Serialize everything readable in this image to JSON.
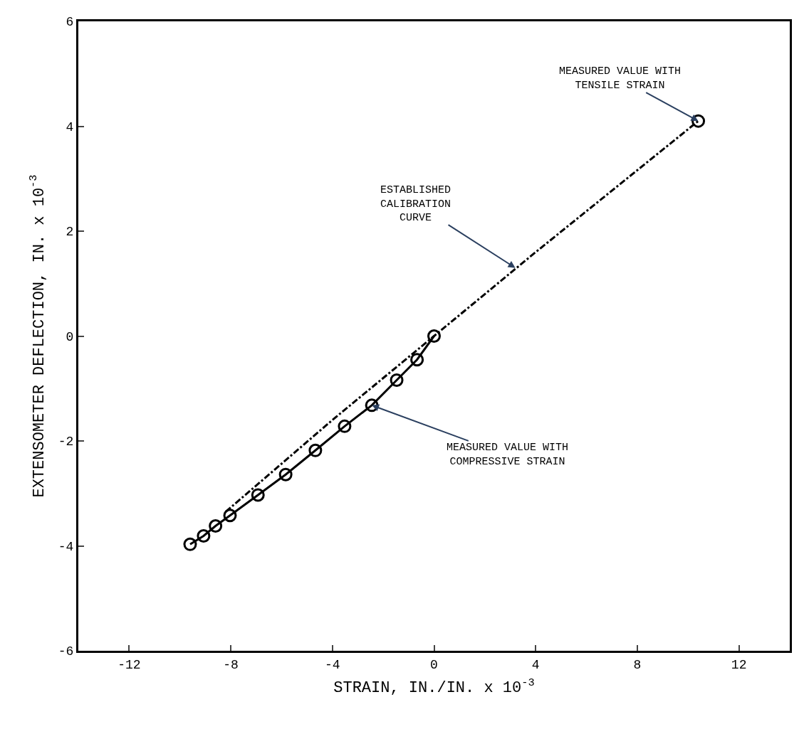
{
  "chart_data": {
    "type": "line",
    "xlabel": "STRAIN, IN./IN. x 10$^{-3}$",
    "ylabel": "EXTENSOMETER DEFLECTION, IN. x 10$^{-3}$",
    "xlim": [
      -14,
      14
    ],
    "ylim": [
      -6,
      6
    ],
    "xticks": [
      -12,
      -8,
      -4,
      0,
      4,
      8,
      12
    ],
    "yticks": [
      -6,
      -4,
      -2,
      0,
      2,
      4,
      6
    ],
    "series": [
      {
        "color": "#000000",
        "line_style": "dashed",
        "marker": "none",
        "x": [
          -8.2,
          -4,
          0,
          4,
          10.4
        ],
        "values": [
          -3.35,
          -1.6,
          0,
          1.6,
          4.1
        ]
      },
      {
        "color": "#000000",
        "line_style": "solid",
        "marker": "circle",
        "x": [
          0,
          -0.67,
          -1.47,
          -2.45,
          -3.52,
          -4.67,
          -5.84,
          -6.93,
          -8.03,
          -8.6,
          -9.07,
          -9.6
        ],
        "values": [
          0,
          -0.45,
          -0.84,
          -1.32,
          -1.72,
          -2.18,
          -2.64,
          -3.03,
          -3.42,
          -3.62,
          -3.81,
          -3.97
        ]
      },
      {
        "type": "scatter",
        "color": "#000000",
        "marker": "circle",
        "x": [
          10.4
        ],
        "values": [
          4.1
        ]
      }
    ],
    "annotations": [
      {
        "text": "MEASURED VALUE WITH\nTENSILE STRAIN",
        "x": 10.4,
        "y": 4.1
      },
      {
        "text": "ESTABLISHED\nCALIBRATION\nCURVE",
        "x": 3.2,
        "y": 1.3
      },
      {
        "text": "MEASURED VALUE WITH\nCOMPRESSIVE STRAIN",
        "x": -2.45,
        "y": -1.32
      }
    ]
  }
}
